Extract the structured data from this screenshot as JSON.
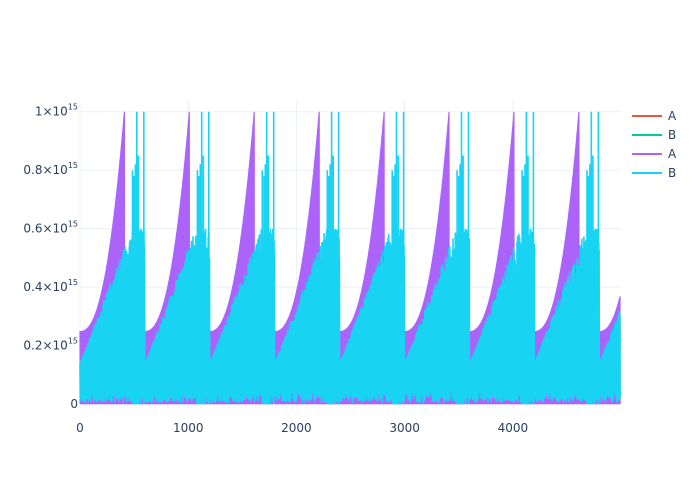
{
  "chart_data": {
    "type": "line",
    "title": "",
    "xlabel": "",
    "ylabel": "",
    "xlim": [
      0,
      4990
    ],
    "ylim": [
      -20000000000000.0,
      1040000000000000.0
    ],
    "grid": true,
    "legend_placement": "top-right",
    "x_ticks": [
      {
        "value": 0,
        "label": "0"
      },
      {
        "value": 1000,
        "label": "1000"
      },
      {
        "value": 2000,
        "label": "2000"
      },
      {
        "value": 3000,
        "label": "3000"
      },
      {
        "value": 4000,
        "label": "4000"
      }
    ],
    "y_ticks": [
      {
        "value": 0,
        "label": "0"
      },
      {
        "value": 200000000000000.0,
        "label": "0.2×10",
        "exp": "15"
      },
      {
        "value": 400000000000000.0,
        "label": "0.4×10",
        "exp": "15"
      },
      {
        "value": 600000000000000.0,
        "label": "0.6×10",
        "exp": "15"
      },
      {
        "value": 800000000000000.0,
        "label": "0.8×10",
        "exp": "15"
      },
      {
        "value": 1000000000000000.0,
        "label": "1×10",
        "exp": "15"
      }
    ],
    "series": [
      {
        "name": "A",
        "color": "#EF553B",
        "values": []
      },
      {
        "name": "B",
        "color": "#00CC96",
        "values": []
      },
      {
        "name": "A",
        "color": "#AB63FA",
        "pattern": "sawtooth-envelope",
        "period": 600,
        "envelope_start": 250000000000000.0,
        "envelope_peak": 1000000000000000.0,
        "ramp_end_offset": 410,
        "baseline": 0
      },
      {
        "name": "B",
        "color": "#19D3F3",
        "pattern": "spike-clusters",
        "period": 600,
        "band_low": 140000000000000.0,
        "band_high": 600000000000000.0,
        "spike_offsets": [
          485,
          500,
          512,
          525,
          540,
          560,
          590
        ],
        "spike_values": [
          800000000000000.0,
          780000000000000.0,
          820000000000000.0,
          1000000000000000.0,
          850000000000000.0,
          600000000000000.0,
          1000000000000000.0
        ]
      }
    ]
  }
}
